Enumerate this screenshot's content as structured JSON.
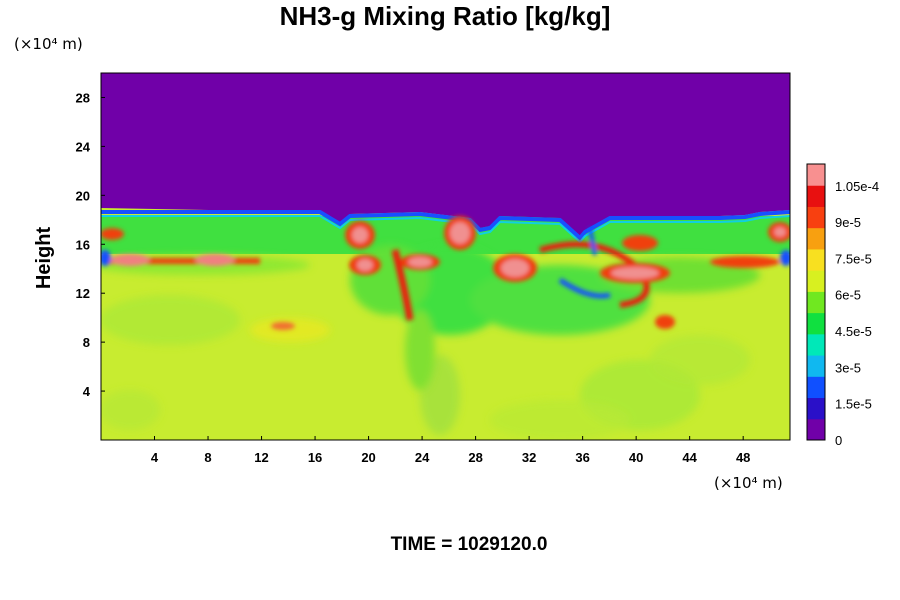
{
  "chart_data": {
    "type": "heatmap",
    "title": "NH3-g Mixing Ratio [kg/kg]",
    "ylabel": "Height",
    "y_unit": "(×10⁴ m)",
    "x_unit": "(×10⁴ m)",
    "xlim": [
      0,
      51.5
    ],
    "ylim": [
      0,
      30
    ],
    "xticks": [
      "4",
      "8",
      "12",
      "16",
      "20",
      "24",
      "28",
      "32",
      "36",
      "40",
      "44",
      "48"
    ],
    "yticks": [
      "4",
      "8",
      "12",
      "16",
      "20",
      "24",
      "28"
    ],
    "colorbar": {
      "labels": [
        "0",
        "1.5e-5",
        "3e-5",
        "4.5e-5",
        "6e-5",
        "7.5e-5",
        "9e-5",
        "1.05e-4"
      ],
      "range": [
        0,
        0.000114
      ],
      "colors": [
        "#7000a8",
        "#2a10c8",
        "#1050ff",
        "#10b8f0",
        "#00e8b8",
        "#10e040",
        "#70e820",
        "#d8f020",
        "#f8e020",
        "#f8a010",
        "#f84010",
        "#e81010",
        "#f89090"
      ]
    },
    "regions": [
      {
        "level": "0",
        "height_range": [
          19,
          30
        ]
      },
      {
        "level": "~6e-5 (green band)",
        "height_range": [
          15.5,
          18.5
        ]
      },
      {
        "level": "~1.05e-4+ (red/pink filaments)",
        "height_range": [
          10,
          18
        ]
      },
      {
        "level": "~7.5e-5 (yellow-green)",
        "height_range": [
          0,
          14
        ]
      }
    ],
    "time_label": "TIME = 1029120.0"
  }
}
